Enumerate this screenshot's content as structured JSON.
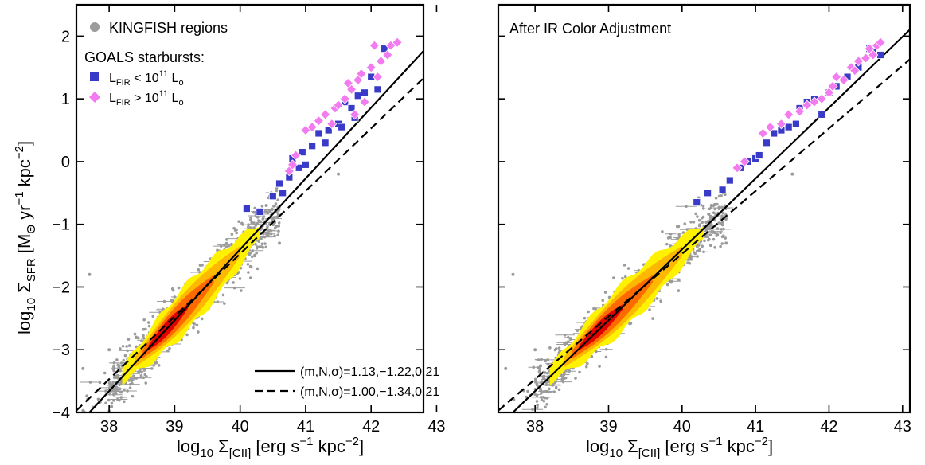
{
  "chart_data": [
    {
      "type": "scatter",
      "panel": "left",
      "xlabel": "log₁₀ Σ[CII] [erg s⁻¹ kpc⁻²]",
      "ylabel": "log₁₀ ΣSFR [M⊙ yr⁻¹ kpc⁻²]",
      "xlim": [
        37.5,
        43
      ],
      "ylim": [
        -4,
        2.5
      ],
      "xticks": [
        "38",
        "39",
        "40",
        "41",
        "42",
        "43"
      ],
      "yticks": [
        "−4",
        "−3",
        "−2",
        "−1",
        "0",
        "1",
        "2"
      ],
      "grid": false,
      "legend": {
        "placement": "top-left",
        "items": [
          {
            "label": "KINGFISH regions",
            "marker": "circle",
            "color": "#9b9b9b"
          },
          {
            "label": "GOALS starbursts:",
            "marker": "none"
          },
          {
            "label": "L_FIR < 10^11 L_o",
            "marker": "square",
            "color": "#3a3ac8"
          },
          {
            "label": "L_FIR > 10^11 L_o",
            "marker": "diamond",
            "color": "#f27bf0"
          }
        ]
      },
      "fit_legend": {
        "placement": "bottom-right",
        "items": [
          {
            "label": "(m,N,σ)=1.13,−1.22,0.21",
            "style": "solid"
          },
          {
            "label": "(m,N,σ)=1.00,−1.34,0.21",
            "style": "dashed"
          }
        ]
      },
      "lines": [
        {
          "style": "solid",
          "m": 1.13,
          "x0": 39.0,
          "y0": -2.53
        },
        {
          "style": "dashed",
          "m": 1.0,
          "x0": 39.0,
          "y0": -2.47
        }
      ],
      "density_band": {
        "x_range": [
          38.2,
          40.4
        ],
        "levels": [
          "#fff200",
          "#ffb800",
          "#ff6a00",
          "#e00000"
        ]
      },
      "series": [
        {
          "name": "L_FIR < 10^11 L_o",
          "marker": "square",
          "color": "#3a3ac8",
          "x": [
            40.1,
            40.3,
            40.5,
            40.6,
            40.65,
            40.75,
            40.8,
            40.9,
            40.95,
            41.0,
            41.1,
            41.2,
            41.3,
            41.35,
            41.5,
            41.55,
            41.6,
            41.7,
            41.75,
            41.8,
            41.9,
            42.0,
            42.1,
            42.2
          ],
          "y": [
            -0.75,
            -0.8,
            -0.55,
            -0.35,
            -0.5,
            -0.25,
            0.05,
            -0.1,
            0.15,
            -0.05,
            0.25,
            0.45,
            0.3,
            0.5,
            0.6,
            0.55,
            0.95,
            0.85,
            0.7,
            1.05,
            1.1,
            1.35,
            1.15,
            1.8
          ]
        },
        {
          "name": "L_FIR > 10^11 L_o",
          "marker": "diamond",
          "color": "#f27bf0",
          "x": [
            40.75,
            40.8,
            40.85,
            41.0,
            41.1,
            41.2,
            41.3,
            41.4,
            41.45,
            41.5,
            41.6,
            41.65,
            41.7,
            41.75,
            41.8,
            41.85,
            41.9,
            42.0,
            42.05,
            42.1,
            42.15,
            42.25,
            42.3,
            42.4
          ],
          "y": [
            -0.15,
            -0.05,
            0.1,
            0.5,
            0.55,
            0.65,
            0.75,
            0.6,
            0.85,
            0.9,
            1.0,
            1.25,
            1.15,
            0.75,
            1.3,
            1.4,
            0.95,
            1.5,
            1.85,
            1.35,
            1.6,
            1.7,
            1.85,
            1.9
          ]
        }
      ]
    },
    {
      "type": "scatter",
      "panel": "right",
      "title": "After IR Color Adjustment",
      "xlabel": "log₁₀ Σ[CII] [erg s⁻¹ kpc⁻²]",
      "xlim": [
        37.5,
        43
      ],
      "ylim": [
        -4,
        2.5
      ],
      "xticks": [
        "38",
        "39",
        "40",
        "41",
        "42",
        "43"
      ],
      "grid": false,
      "lines": [
        {
          "style": "solid",
          "m": 1.13,
          "x0": 39.0,
          "y0": -2.53
        },
        {
          "style": "dashed",
          "m": 1.0,
          "x0": 39.0,
          "y0": -2.47
        }
      ],
      "density_band": {
        "x_range": [
          38.2,
          40.4
        ],
        "levels": [
          "#fff200",
          "#ffb800",
          "#ff6a00",
          "#e00000"
        ]
      },
      "series": [
        {
          "name": "L_FIR < 10^11 L_o",
          "marker": "square",
          "color": "#3a3ac8",
          "x": [
            40.2,
            40.35,
            40.55,
            40.65,
            40.8,
            40.9,
            41.0,
            41.05,
            41.15,
            41.25,
            41.35,
            41.45,
            41.55,
            41.6,
            41.7,
            41.8,
            41.9,
            42.0,
            42.1,
            42.25,
            42.4,
            42.55,
            42.6,
            42.7
          ],
          "y": [
            -0.65,
            -0.5,
            -0.45,
            -0.3,
            -0.1,
            0.0,
            0.05,
            0.1,
            0.3,
            0.45,
            0.5,
            0.55,
            0.6,
            0.85,
            0.95,
            1.0,
            0.75,
            1.1,
            1.2,
            1.35,
            1.5,
            1.8,
            1.75,
            1.7
          ]
        },
        {
          "name": "L_FIR > 10^11 L_o",
          "marker": "diamond",
          "color": "#f27bf0",
          "x": [
            40.75,
            40.85,
            41.1,
            41.2,
            41.35,
            41.45,
            41.6,
            41.7,
            41.8,
            41.9,
            42.0,
            42.05,
            42.1,
            42.2,
            42.3,
            42.35,
            42.4,
            42.5,
            42.55,
            42.6,
            42.65,
            42.7
          ],
          "y": [
            -0.1,
            0.0,
            0.45,
            0.55,
            0.6,
            0.75,
            0.8,
            0.9,
            0.95,
            1.0,
            1.1,
            1.2,
            1.35,
            1.3,
            1.5,
            1.45,
            1.6,
            1.65,
            1.8,
            1.7,
            1.85,
            1.9
          ]
        }
      ]
    }
  ],
  "legend_text": {
    "kingfish": "KINGFISH regions",
    "goals": "GOALS starbursts:",
    "low_l": "L",
    "low_sub": "FIR",
    "low_rest": " < 10",
    "low_exp": "11",
    "low_unit": " L",
    "low_unit_sub": "o",
    "high_rest": " > 10",
    "fit_solid": "(m,N,σ)=1.13,−1.22,0.21",
    "fit_dashed": "(m,N,σ)=1.00,−1.34,0.21"
  },
  "right_title": "After IR Color Adjustment",
  "axis_text": {
    "x_log": "log",
    "x_10": "10",
    "x_sigma": " Σ",
    "x_sub": "[CII]",
    "x_units_a": " [erg s",
    "x_exp1": "−1",
    "x_units_b": " kpc",
    "x_exp2": "−2",
    "x_units_c": "]",
    "y_log": "log",
    "y_10": "10",
    "y_sigma": " Σ",
    "y_sub": "SFR",
    "y_units_a": " [M",
    "y_msub": "Θ",
    "y_units_b": " yr",
    "y_exp1": "−1",
    "y_units_c": " kpc",
    "y_exp2": "−2",
    "y_units_d": "]"
  },
  "colors": {
    "kingfish": "#9b9b9b",
    "low": "#3a3ac8",
    "high": "#f27bf0"
  }
}
